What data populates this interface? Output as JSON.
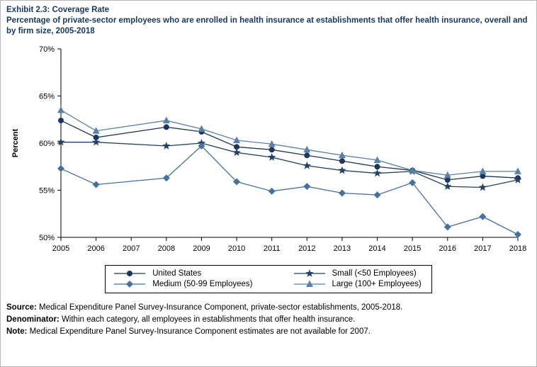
{
  "title": {
    "line1": "Exhibit 2.3: Coverage Rate",
    "line2": "Percentage of private-sector employees who are enrolled in health insurance at establishments that offer health insurance, overall and by firm size, 2005-2018"
  },
  "footer": {
    "source": {
      "label": "Source:",
      "text": " Medical Expenditure Panel Survey-Insurance Component, private-sector establishments, 2005-2018."
    },
    "denominator": {
      "label": "Denominator:",
      "text": " Within each category, all employees in establishments that offer health insurance."
    },
    "note": {
      "label": "Note:",
      "text": " Medical Expenditure Panel Survey-Insurance Component estimates are not available for 2007."
    }
  },
  "chart_data": {
    "type": "line",
    "title": "Exhibit 2.3: Coverage Rate",
    "subtitle": "Percentage of private-sector employees who are enrolled in health insurance at establishments that offer health insurance, overall and by firm size, 2005-2018",
    "ylabel": "Percent",
    "x": [
      "2005",
      "2006",
      "2007",
      "2008",
      "2009",
      "2010",
      "2011",
      "2012",
      "2013",
      "2014",
      "2015",
      "2016",
      "2017",
      "2018"
    ],
    "yticks": [
      50,
      55,
      60,
      65,
      70
    ],
    "ytick_suffix": "%",
    "ylim": [
      50,
      70
    ],
    "grid": false,
    "legend_position": "bottom",
    "missing_year_note": "2007 estimates not available",
    "series": [
      {
        "name": "United States",
        "marker": "circle",
        "color": "#1F3757",
        "values": [
          62.4,
          60.6,
          null,
          61.7,
          61.2,
          59.6,
          59.3,
          58.7,
          58.1,
          57.5,
          57.1,
          56.1,
          56.5,
          56.3
        ]
      },
      {
        "name": "Small (<50 Employees)",
        "marker": "star",
        "color": "#24425F",
        "values": [
          60.1,
          60.1,
          null,
          59.7,
          60.0,
          59.0,
          58.5,
          57.6,
          57.1,
          56.8,
          57.0,
          55.4,
          55.3,
          56.1
        ]
      },
      {
        "name": "Medium (50-99 Employees)",
        "marker": "diamond",
        "color": "#46719C",
        "values": [
          57.3,
          55.6,
          null,
          56.3,
          59.7,
          55.9,
          54.9,
          55.4,
          54.7,
          54.5,
          55.8,
          51.1,
          52.2,
          50.3
        ]
      },
      {
        "name": "Large (100+ Employees)",
        "marker": "triangle",
        "color": "#5B80A5",
        "values": [
          63.5,
          61.3,
          null,
          62.4,
          61.5,
          60.3,
          59.9,
          59.3,
          58.7,
          58.2,
          57.1,
          56.6,
          57.0,
          57.0
        ]
      }
    ]
  }
}
